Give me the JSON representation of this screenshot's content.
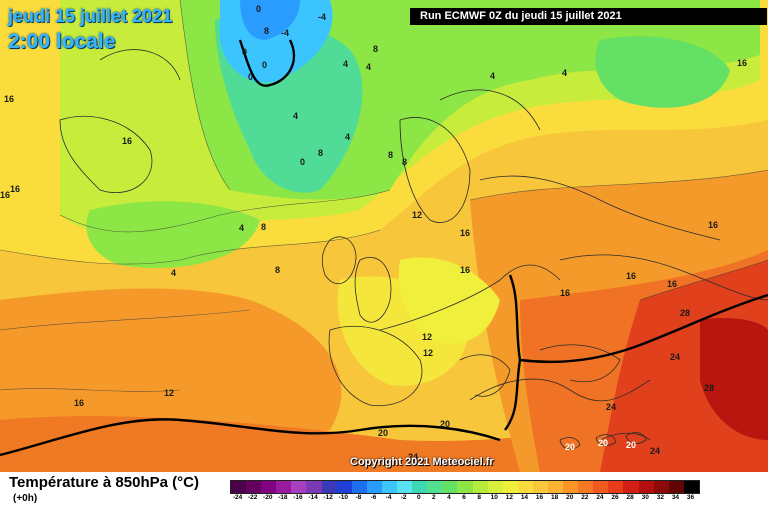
{
  "header": {
    "date_line": "jeudi 15 juillet 2021",
    "time_line": "2:00 locale",
    "run_banner": "Run ECMWF 0Z du jeudi 15 juillet 2021"
  },
  "copyright": "Copyright 2021 Meteociel.fr",
  "legend": {
    "title": "Température à 850hPa (°C)",
    "subtitle": "(+0h)",
    "scale_labels": [
      "-24",
      "-22",
      "-20",
      "-18",
      "-16",
      "-14",
      "-12",
      "-10",
      "-8",
      "-6",
      "-4",
      "-2",
      "0",
      "2",
      "4",
      "6",
      "8",
      "10",
      "12",
      "14",
      "16",
      "18",
      "20",
      "22",
      "24",
      "26",
      "28",
      "30",
      "32",
      "34",
      "36"
    ],
    "scale_colors": [
      "#4a004a",
      "#66005f",
      "#800080",
      "#99199f",
      "#a640c0",
      "#7a3ab8",
      "#3a3ab8",
      "#1e40d8",
      "#1e6ef0",
      "#2a9cff",
      "#3cc4ff",
      "#5ae0f0",
      "#3cd8b4",
      "#50e090",
      "#64e064",
      "#8ce646",
      "#b4eb3c",
      "#d7f03c",
      "#f0f03c",
      "#fadc3c",
      "#fac83c",
      "#fab432",
      "#fa9628",
      "#f57823",
      "#f05a1e",
      "#e63c19",
      "#d21e14",
      "#b40f0f",
      "#8c0a0a",
      "#640505",
      "#000000"
    ]
  },
  "map": {
    "ocean_color": "#f5c23a",
    "contour_labels": [
      "16",
      "16",
      "16",
      "16",
      "16",
      "16",
      "16",
      "16",
      "16",
      "16",
      "16",
      "16",
      "12",
      "12",
      "12",
      "12",
      "8",
      "8",
      "8",
      "8",
      "8",
      "8",
      "8",
      "4",
      "4",
      "4",
      "4",
      "4",
      "4",
      "4",
      "4",
      "0",
      "0",
      "0",
      "0",
      "0",
      "-4",
      "-4",
      "20",
      "20",
      "20",
      "20",
      "24",
      "24",
      "24",
      "24",
      "28",
      "28",
      "20"
    ]
  }
}
